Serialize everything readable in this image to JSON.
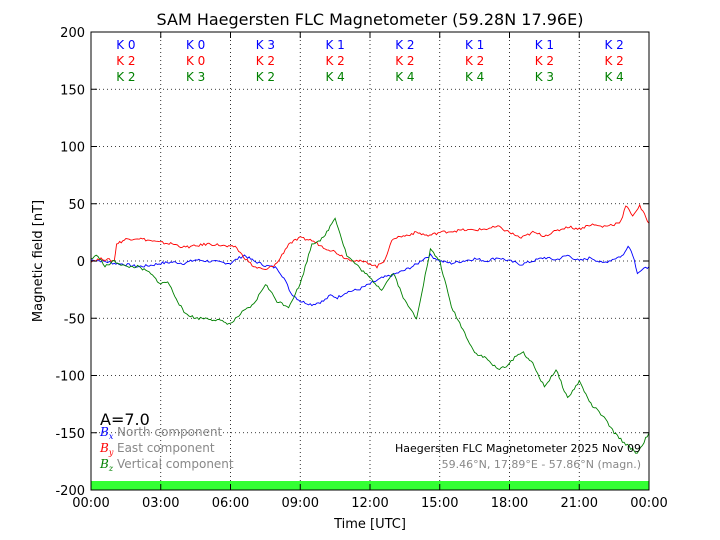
{
  "chart_data": {
    "type": "line",
    "title": "SAM Haegersten FLC Magnetometer (59.28N 17.96E)",
    "xlabel": "Time [UTC]",
    "ylabel": "Magnetic field [nT]",
    "ylim": [
      -200,
      200
    ],
    "xlim": [
      0,
      24
    ],
    "yticks": [
      -200,
      -150,
      -100,
      -50,
      0,
      50,
      100,
      150,
      200
    ],
    "xticks": [
      0,
      3,
      6,
      9,
      12,
      15,
      18,
      21,
      24
    ],
    "xtick_labels": [
      "00:00",
      "03:00",
      "06:00",
      "09:00",
      "12:00",
      "15:00",
      "18:00",
      "21:00",
      "00:00"
    ],
    "grid": true,
    "k_indices": {
      "north": [
        "K 0",
        "K 0",
        "K 3",
        "K 1",
        "K 2",
        "K 1",
        "K 1",
        "K 2"
      ],
      "east": [
        "K 2",
        "K 0",
        "K 2",
        "K 2",
        "K 2",
        "K 2",
        "K 2",
        "K 2"
      ],
      "vertical": [
        "K 2",
        "K 3",
        "K 2",
        "K 4",
        "K 4",
        "K 4",
        "K 3",
        "K 4"
      ]
    },
    "a_index": "A=7.0",
    "station_title": "Haegersten FLC Magnetometer 2025 Nov 09",
    "station_coords": "59.46°N, 17.89°E - 57.86°N (magn.)",
    "series": [
      {
        "name": "North component",
        "symbol": "B",
        "subscript": "x",
        "color": "#0000ff",
        "x": [
          0,
          0.5,
          1,
          1.5,
          2,
          2.5,
          3,
          3.5,
          4,
          4.5,
          5,
          5.5,
          6,
          6.3,
          6.6,
          7,
          7.5,
          8,
          8.3,
          8.6,
          9,
          9.5,
          10,
          10.3,
          10.6,
          11,
          11.5,
          12,
          12.5,
          13,
          13.5,
          14,
          14.3,
          14.6,
          15,
          15.5,
          16,
          16.5,
          17,
          17.5,
          18,
          18.5,
          19,
          19.5,
          20,
          20.5,
          21,
          21.5,
          22,
          22.5,
          22.9,
          23.1,
          23.3,
          23.5,
          24
        ],
        "y": [
          1,
          0,
          -2,
          -3,
          -5,
          -4,
          -2,
          -1,
          -2,
          1,
          0,
          -1,
          -2,
          2,
          5,
          0,
          -4,
          -6,
          -15,
          -28,
          -35,
          -38,
          -35,
          -30,
          -32,
          -27,
          -25,
          -20,
          -15,
          -12,
          -8,
          -3,
          2,
          5,
          0,
          -2,
          0,
          2,
          0,
          3,
          0,
          -3,
          0,
          3,
          1,
          5,
          0,
          3,
          -2,
          2,
          5,
          14,
          6,
          -10,
          -5
        ]
      },
      {
        "name": "East component",
        "symbol": "B",
        "subscript": "y",
        "color": "#ff0000",
        "x": [
          0,
          0.5,
          1,
          1.1,
          1.5,
          2,
          2.5,
          3,
          3.5,
          4,
          4.5,
          5,
          5.5,
          6,
          6.2,
          6.5,
          7,
          7.5,
          8,
          8.5,
          9,
          9.5,
          10,
          10.5,
          11,
          11.5,
          12,
          12.3,
          12.6,
          13,
          13.5,
          14,
          14.5,
          15,
          15.5,
          16,
          16.5,
          17,
          17.5,
          18,
          18.5,
          19,
          19.5,
          20,
          20.5,
          21,
          21.5,
          22,
          22.5,
          22.8,
          23,
          23.3,
          23.6,
          24
        ],
        "y": [
          0,
          2,
          0,
          15,
          19,
          20,
          18,
          16,
          15,
          12,
          13,
          15,
          14,
          12,
          13,
          5,
          -5,
          -8,
          -2,
          15,
          20,
          18,
          12,
          8,
          2,
          0,
          -2,
          -5,
          0,
          20,
          22,
          25,
          22,
          25,
          26,
          27,
          27,
          28,
          30,
          25,
          20,
          25,
          22,
          26,
          30,
          28,
          32,
          30,
          32,
          35,
          48,
          40,
          48,
          33
        ]
      },
      {
        "name": "Vertical component",
        "symbol": "B",
        "subscript": "z",
        "color": "#008000",
        "x": [
          0,
          0.3,
          0.6,
          1,
          1.5,
          2,
          2.5,
          3,
          3.3,
          3.6,
          4,
          4.5,
          5,
          5.5,
          6,
          6.5,
          7,
          7.5,
          8,
          8.5,
          9,
          9.5,
          10,
          10.5,
          11,
          11.5,
          12,
          12.5,
          13,
          13.5,
          14,
          14.3,
          14.6,
          15,
          15.5,
          16,
          16.5,
          17,
          17.5,
          18,
          18.3,
          18.6,
          19,
          19.5,
          20,
          20.5,
          21,
          21.5,
          22,
          22.5,
          23,
          23.5,
          24
        ],
        "y": [
          2,
          5,
          -5,
          0,
          -5,
          -5,
          -10,
          -20,
          -18,
          -30,
          -45,
          -50,
          -50,
          -52,
          -55,
          -45,
          -38,
          -20,
          -35,
          -40,
          -20,
          15,
          20,
          38,
          5,
          -5,
          -15,
          -25,
          -10,
          -35,
          -50,
          -20,
          10,
          0,
          -40,
          -60,
          -80,
          -85,
          -95,
          -90,
          -82,
          -80,
          -90,
          -110,
          -95,
          -120,
          -105,
          -125,
          -135,
          -150,
          -160,
          -168,
          -150
        ]
      }
    ]
  }
}
